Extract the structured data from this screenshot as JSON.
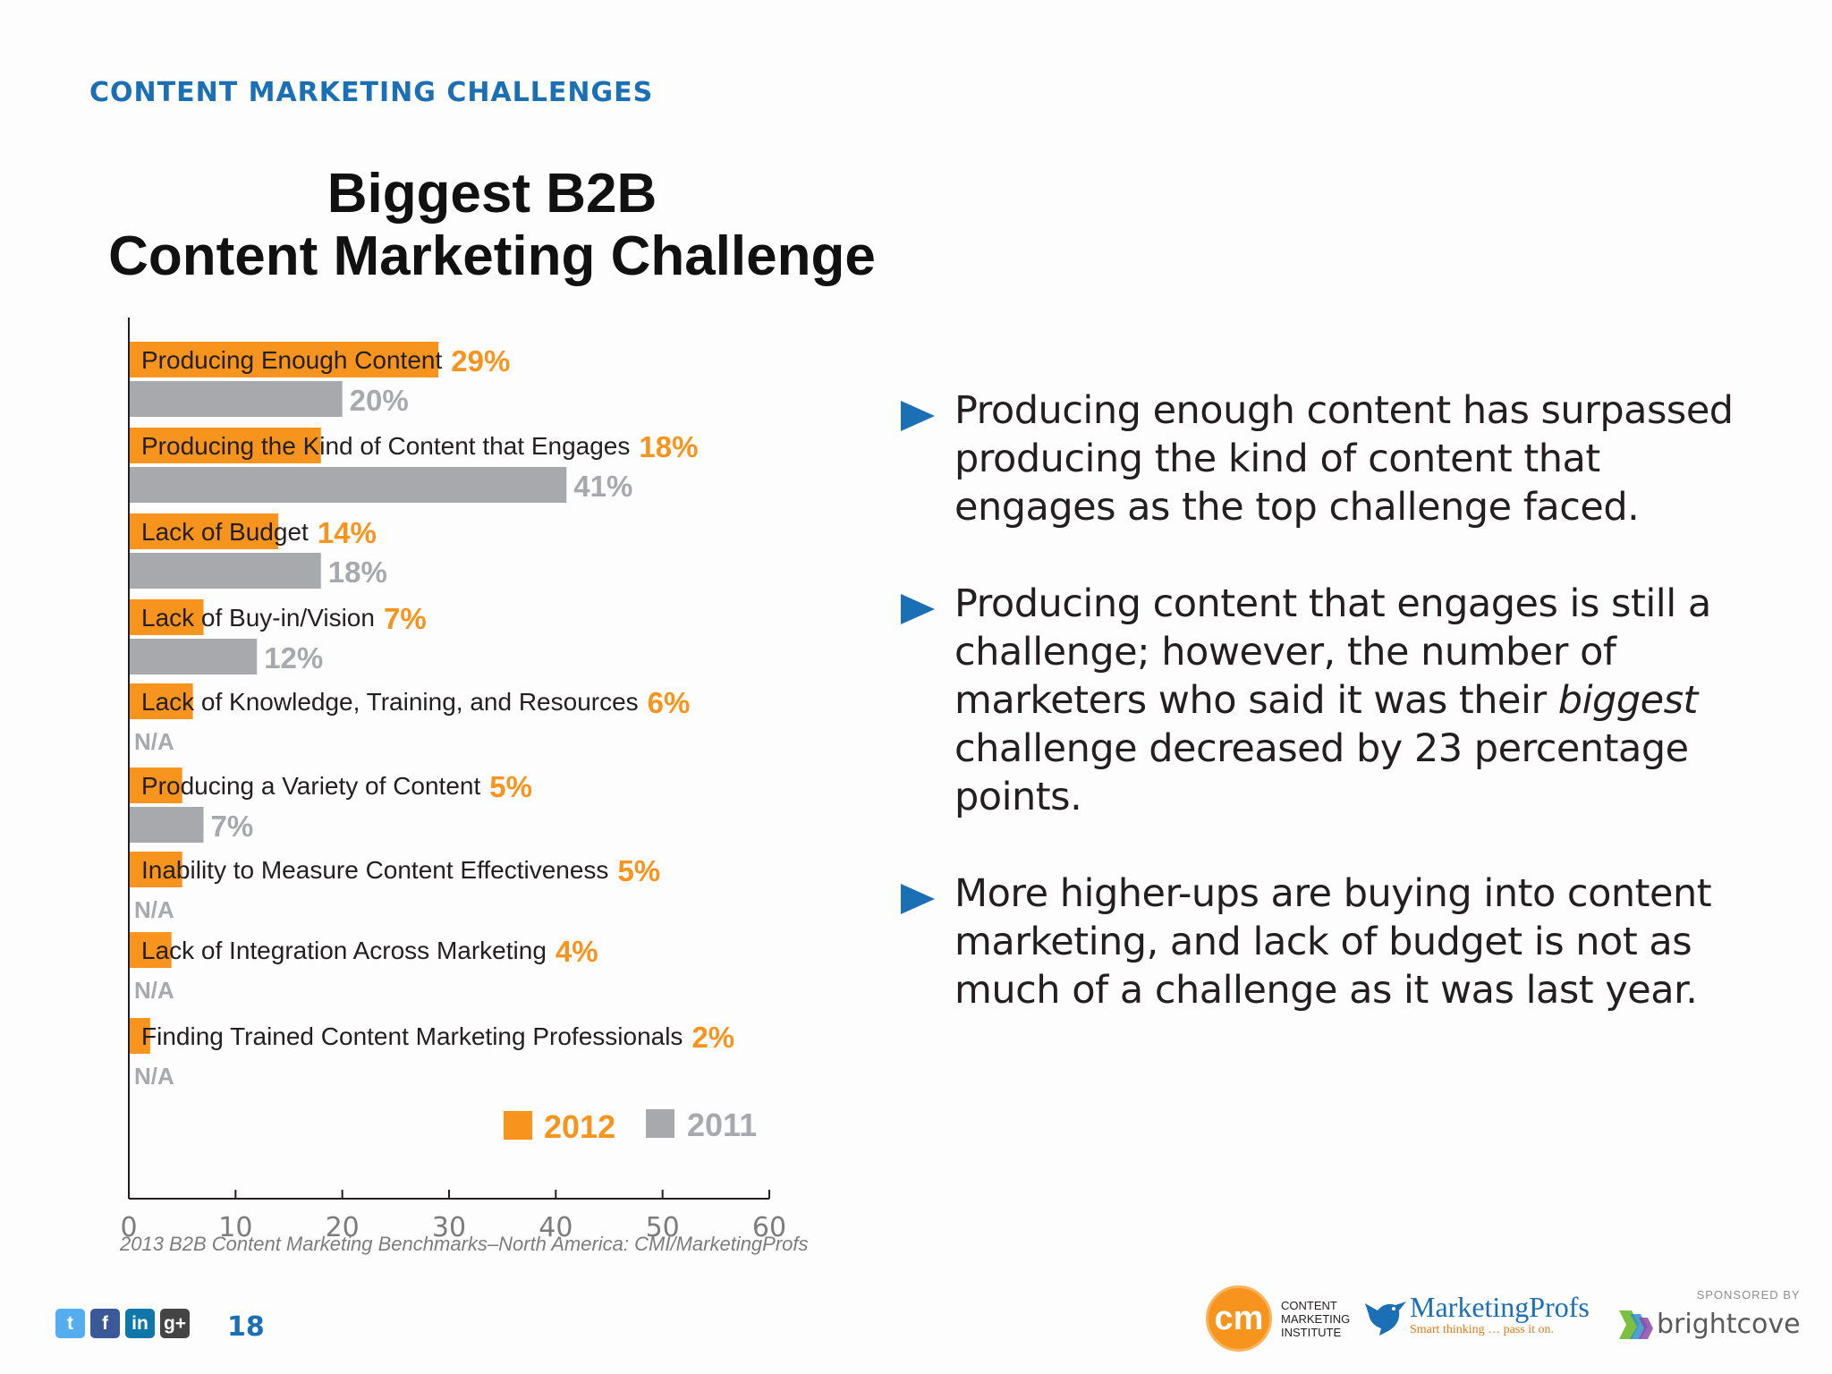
{
  "section_heading": "CONTENT MARKETING CHALLENGES",
  "chart_data": {
    "type": "bar",
    "orientation": "horizontal",
    "title": [
      "Biggest B2B",
      "Content Marketing Challenge"
    ],
    "categories": [
      "Producing Enough Content",
      "Producing the Kind of Content that Engages",
      "Lack of Budget",
      "Lack of Buy-in/Vision",
      "Lack of Knowledge, Training, and Resources",
      "Producing a Variety of Content",
      "Inability to Measure Content Effectiveness",
      "Lack of Integration Across Marketing",
      "Finding Trained Content Marketing Professionals"
    ],
    "series": [
      {
        "name": "2012",
        "color": "#f7941d",
        "values": [
          29,
          18,
          14,
          7,
          6,
          5,
          5,
          4,
          2
        ],
        "labels": [
          "29%",
          "18%",
          "14%",
          "7%",
          "6%",
          "5%",
          "5%",
          "4%",
          "2%"
        ]
      },
      {
        "name": "2011",
        "color": "#a7a9ac",
        "values": [
          20,
          41,
          18,
          12,
          null,
          7,
          null,
          null,
          null
        ],
        "labels": [
          "20%",
          "41%",
          "18%",
          "12%",
          "N/A",
          "7%",
          "N/A",
          "N/A",
          "N/A"
        ]
      }
    ],
    "xlim": [
      0,
      60
    ],
    "xticks": [
      "0",
      "10",
      "20",
      "30",
      "40",
      "50",
      "60"
    ],
    "grid": false,
    "legend_position": "bottom-right"
  },
  "source": "2013 B2B Content Marketing Benchmarks–North America: CMI/MarketingProfs",
  "bullets": [
    {
      "text": "Producing enough content has surpassed producing the kind of content that engages as the top challenge faced."
    },
    {
      "before": "Producing content that engages is still a challenge; however, the number of marketers who said it was their ",
      "emph": "biggest",
      "after": " challenge decreased by 23 percentage points."
    },
    {
      "text": "More higher-ups are buying into content marketing, and lack of budget is not as much of a challenge as it was last year."
    }
  ],
  "colors": {
    "accent_blue": "#1a6fb5",
    "orange": "#f7941d",
    "gray": "#a7a9ac"
  },
  "footer": {
    "page_number": "18",
    "social_icons": [
      {
        "name": "twitter-icon",
        "glyph": "t",
        "color": "#55acee"
      },
      {
        "name": "facebook-icon",
        "glyph": "f",
        "color": "#3b5998"
      },
      {
        "name": "linkedin-icon",
        "glyph": "in",
        "color": "#0e76a8"
      },
      {
        "name": "googleplus-icon",
        "glyph": "g+",
        "color": "#444444"
      }
    ],
    "cmi_logo_text": "cm",
    "cmi_logo_words": "CONTENT MARKETING INSTITUTE",
    "mp_logo_name": "MarketingProfs",
    "mp_logo_tag": "Smart thinking … pass it on.",
    "sponsored_label": "SPONSORED BY",
    "brightcove_name": "brightcove"
  }
}
